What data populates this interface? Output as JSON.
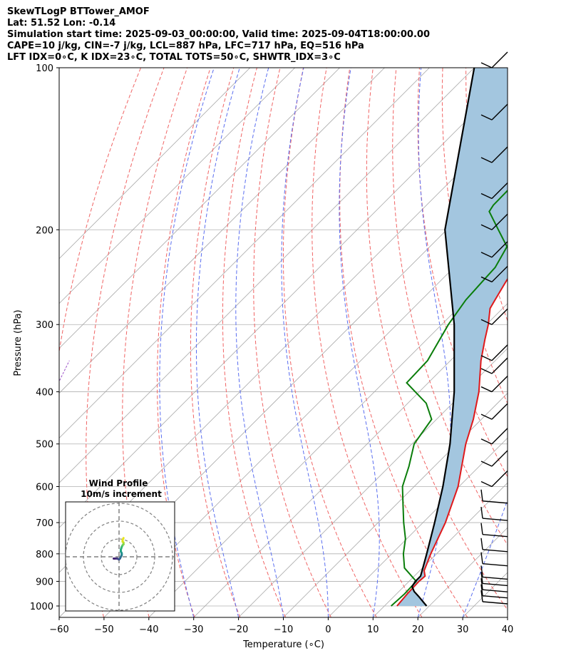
{
  "header": {
    "line1": "SkewTLogP BTTower_AMOF",
    "line2": "Lat: 51.52   Lon: -0.14",
    "line3": "Simulation start time: 2025-09-03_00:00:00, Valid time: 2025-09-04T18:00:00.00",
    "line4": "CAPE=10 j/kg, CIN=-7 j/kg, LCL=887 hPa, LFC=717 hPa, EQ=516 hPa",
    "line5": "LFT IDX=0∘C, K IDX=23∘C, TOTAL TOTS=50∘C, SHWTR_IDX=3∘C"
  },
  "inset": {
    "title1": "Wind Profile",
    "title2": "10m/s increment"
  },
  "chart_data": {
    "type": "line",
    "subtype": "skew-T log-P diagram",
    "xlabel": "Temperature (∘C)",
    "ylabel": "Pressure (hPa)",
    "xlim": [
      -60,
      40
    ],
    "ylim": [
      1050,
      100
    ],
    "xticks": [
      -60,
      -50,
      -40,
      -30,
      -20,
      -10,
      0,
      10,
      20,
      30,
      40
    ],
    "yticks": [
      100,
      200,
      300,
      400,
      500,
      600,
      700,
      800,
      900,
      1000
    ],
    "grid": true,
    "series": [
      {
        "name": "Temperature",
        "color": "#e0191b",
        "p": [
          1000,
          950,
          900,
          880,
          860,
          800,
          700,
          600,
          500,
          450,
          400,
          350,
          320,
          300,
          280,
          270,
          250,
          230,
          200,
          185,
          170,
          150,
          140,
          120,
          100
        ],
        "t": [
          12.8,
          12.4,
          12.2,
          12.4,
          11.0,
          8.7,
          5.0,
          -0.2,
          -8.0,
          -11.8,
          -16.7,
          -23.2,
          -27.0,
          -29.6,
          -32.8,
          -33.6,
          -35.2,
          -36.8,
          -38.6,
          -40.5,
          -43.6,
          -46.1,
          -48.5,
          -51.3,
          -54.9
        ]
      },
      {
        "name": "Dewpoint",
        "color": "#0a7d0a",
        "p": [
          1000,
          950,
          900,
          850,
          800,
          750,
          700,
          650,
          600,
          550,
          500,
          450,
          420,
          400,
          385,
          350,
          300,
          270,
          250,
          235,
          215,
          200,
          185,
          180,
          100
        ],
        "t": [
          11.5,
          11.8,
          11.6,
          6.0,
          2.6,
          -0.3,
          -4.3,
          -8.3,
          -12.6,
          -15.7,
          -19.5,
          -21.1,
          -25.9,
          -30.9,
          -34.8,
          -35.1,
          -38.5,
          -40.1,
          -40.5,
          -40.8,
          -42.8,
          -48.5,
          -54.6,
          -55.1,
          -55.9
        ]
      },
      {
        "name": "Parcel",
        "color": "#000000",
        "p": [
          1000,
          960,
          940,
          920,
          900,
          880,
          850,
          800,
          700,
          600,
          500,
          400,
          300,
          200,
          100
        ],
        "t": [
          19.4,
          15.5,
          13.4,
          11.8,
          11.4,
          11.4,
          10.1,
          7.8,
          2.6,
          -3.6,
          -11.5,
          -22.2,
          -37.2,
          -60.4,
          -90.0
        ]
      }
    ],
    "shaded_region": {
      "name": "CAPE/CIN area",
      "color": "#a3c6df",
      "between": [
        "Parcel",
        "Temperature"
      ]
    },
    "background_lines": {
      "isotherms_C": [
        -140,
        -130,
        -120,
        -110,
        -100,
        -90,
        -80,
        -70,
        -60,
        -50,
        -40,
        -30,
        -20,
        -10,
        0,
        10,
        20,
        30,
        40
      ],
      "dry_adiabats_K": [
        210,
        220,
        230,
        240,
        250,
        260,
        270,
        280,
        290,
        300,
        310,
        320,
        330,
        340,
        350,
        360,
        370,
        380,
        390,
        400,
        410,
        420,
        430,
        440,
        450
      ],
      "moist_adiabats_start_C": [
        -30,
        -20,
        -10,
        0,
        10,
        20,
        30,
        40
      ],
      "mixing_ratio_line": "purple"
    },
    "wind_barbs": {
      "p": [
        1000,
        975,
        950,
        925,
        900,
        850,
        800,
        750,
        700,
        650,
        600,
        550,
        500,
        450,
        400,
        370,
        350,
        300,
        250,
        225,
        200,
        175,
        150,
        125,
        100
      ]
    },
    "hodograph": {
      "rings": [
        10,
        20,
        30
      ],
      "u": [
        -3.0,
        -2.0,
        -1.0,
        0.0,
        0.5,
        1.0,
        1.5,
        1.5,
        1.0,
        1.0,
        1.5,
        2.0,
        2.5,
        2.5,
        2.0,
        2.0,
        2.5
      ],
      "v": [
        -1.0,
        -1.0,
        -1.0,
        -1.5,
        -1.0,
        0.0,
        1.0,
        2.0,
        3.0,
        4.0,
        5.5,
        6.5,
        7.0,
        8.0,
        8.5,
        9.5,
        10.5
      ]
    }
  }
}
